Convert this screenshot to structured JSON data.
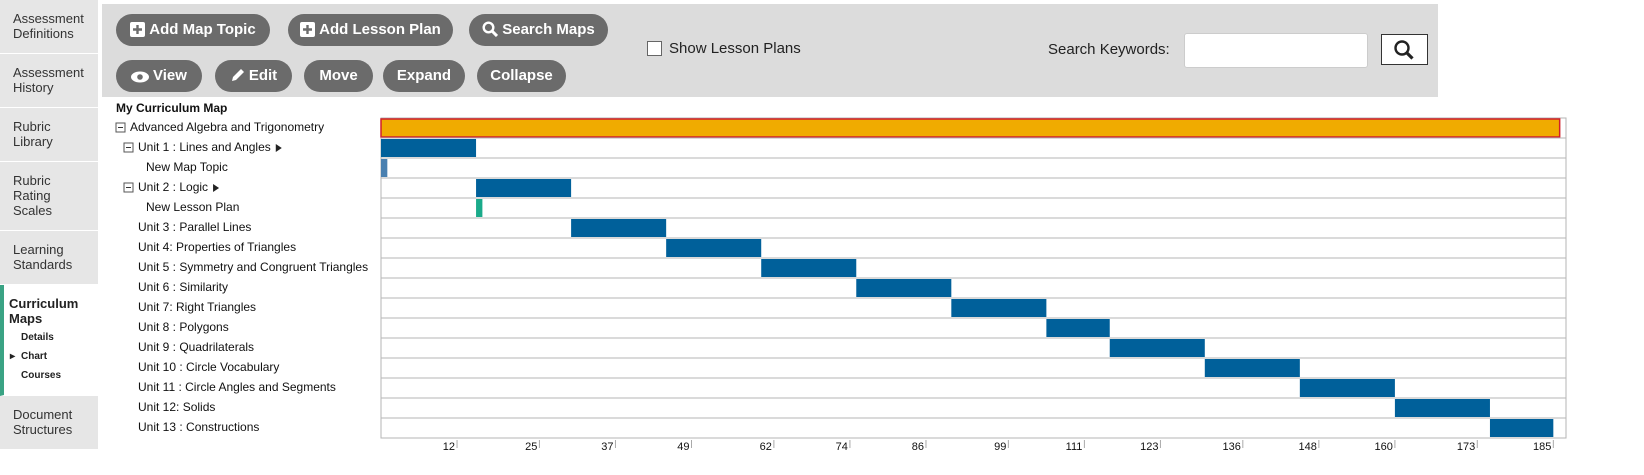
{
  "sidebar": {
    "items": [
      {
        "label": "Assessment Definitions"
      },
      {
        "label": "Assessment History"
      },
      {
        "label": "Rubric Library"
      },
      {
        "label": "Rubric Rating Scales"
      },
      {
        "label": "Learning Standards"
      },
      {
        "label": "Curriculum Maps",
        "active": true,
        "sub": [
          "Details",
          "Chart",
          "Courses"
        ],
        "current_sub": 1
      },
      {
        "label": "Document Structures"
      }
    ]
  },
  "toolbar": {
    "buttons": [
      "Add Map Topic",
      "Add Lesson Plan",
      "Search Maps",
      "View",
      "Edit",
      "Move",
      "Expand",
      "Collapse"
    ],
    "checkbox": "Show Lesson Plans",
    "search_label": "Search Keywords:"
  },
  "gantt": {
    "title": "My Curriculum Map",
    "xlim": [
      0,
      187
    ],
    "xticks": [
      12,
      25,
      37,
      49,
      62,
      74,
      86,
      99,
      111,
      123,
      136,
      148,
      160,
      173,
      185
    ],
    "rows": [
      {
        "label": "Advanced Algebra and Trigonometry",
        "level": 0,
        "toggle": true,
        "start": 0,
        "end": 186,
        "color": "#f0ab00",
        "selected": true
      },
      {
        "label": "Unit 1 : Lines and Angles",
        "level": 1,
        "toggle": true,
        "arrow": true,
        "start": 0,
        "end": 15,
        "color": "#00609a"
      },
      {
        "label": "New Map Topic",
        "level": 2,
        "start": 0,
        "end": 1,
        "color": "#4a80b0"
      },
      {
        "label": "Unit 2 : Logic",
        "level": 1,
        "toggle": true,
        "arrow": true,
        "start": 15,
        "end": 30,
        "color": "#00609a"
      },
      {
        "label": "New Lesson Plan",
        "level": 2,
        "start": 15,
        "end": 16,
        "color": "#1aaa8a"
      },
      {
        "label": "Unit 3 : Parallel Lines",
        "level": 1,
        "start": 30,
        "end": 45,
        "color": "#00609a"
      },
      {
        "label": "Unit 4: Properties of Triangles",
        "level": 1,
        "start": 45,
        "end": 60,
        "color": "#00609a"
      },
      {
        "label": "Unit 5 : Symmetry and Congruent Triangles",
        "level": 1,
        "start": 60,
        "end": 75,
        "color": "#00609a"
      },
      {
        "label": "Unit 6 : Similarity",
        "level": 1,
        "start": 75,
        "end": 90,
        "color": "#00609a"
      },
      {
        "label": "Unit 7: Right Triangles",
        "level": 1,
        "start": 90,
        "end": 105,
        "color": "#00609a"
      },
      {
        "label": "Unit 8 : Polygons",
        "level": 1,
        "start": 105,
        "end": 115,
        "color": "#00609a"
      },
      {
        "label": "Unit 9 : Quadrilaterals",
        "level": 1,
        "start": 115,
        "end": 130,
        "color": "#00609a"
      },
      {
        "label": "Unit 10 : Circle Vocabulary",
        "level": 1,
        "start": 130,
        "end": 145,
        "color": "#00609a"
      },
      {
        "label": "Unit 11 : Circle Angles and Segments",
        "level": 1,
        "start": 145,
        "end": 160,
        "color": "#00609a"
      },
      {
        "label": "Unit 12: Solids",
        "level": 1,
        "start": 160,
        "end": 175,
        "color": "#00609a"
      },
      {
        "label": "Unit 13 : Constructions",
        "level": 1,
        "start": 175,
        "end": 185,
        "color": "#00609a"
      }
    ]
  }
}
